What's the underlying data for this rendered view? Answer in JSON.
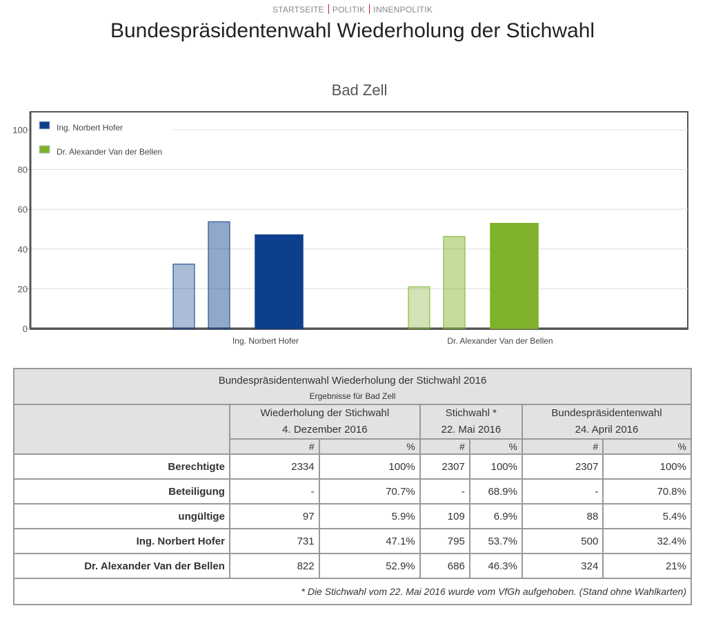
{
  "breadcrumb": [
    "STARTSEITE",
    "POLITIK",
    "INNENPOLITIK"
  ],
  "page_title": "Bundespräsidentenwahl Wiederholung der Stichwahl",
  "chart_data": {
    "type": "bar",
    "title": "Bad Zell",
    "xlabel": "",
    "ylabel": "",
    "ylim": [
      0,
      100
    ],
    "yticks": [
      0,
      20,
      40,
      60,
      80,
      100
    ],
    "grid": true,
    "legend_position": "top-left",
    "categories": [
      "Ing. Norbert Hofer",
      "Dr. Alexander Van der Bellen"
    ],
    "legend": [
      {
        "name": "Ing. Norbert Hofer",
        "color": "#0e3f8c"
      },
      {
        "name": "Dr. Alexander Van der Bellen",
        "color": "#7fb22a"
      }
    ],
    "series": [
      {
        "name": "Bundespräsidentenwahl 24. April 2016",
        "values": [
          32.4,
          21
        ],
        "opacity": 0.35
      },
      {
        "name": "Stichwahl 22. Mai 2016",
        "values": [
          53.7,
          46.3
        ],
        "opacity": 0.45
      },
      {
        "name": "Wiederholung der Stichwahl 4. Dezember 2016",
        "values": [
          47.1,
          52.9
        ],
        "opacity": 1
      }
    ],
    "colors": [
      "#0e3f8c",
      "#7fb22a"
    ]
  },
  "table": {
    "title": "Bundespräsidentenwahl Wiederholung der Stichwahl 2016",
    "subtitle": "Ergebnisse für Bad Zell",
    "groups": [
      {
        "name": "Wiederholung der Stichwahl",
        "date": "4. Dezember 2016"
      },
      {
        "name": "Stichwahl *",
        "date": "22. Mai 2016"
      },
      {
        "name": "Bundespräsidentenwahl",
        "date": "24. April 2016"
      }
    ],
    "units": [
      "#",
      "%",
      "#",
      "%",
      "#",
      "%"
    ],
    "rows": [
      {
        "label": "Berechtigte",
        "values": [
          "2334",
          "100%",
          "2307",
          "100%",
          "2307",
          "100%"
        ]
      },
      {
        "label": "Beteiligung",
        "values": [
          "-",
          "70.7%",
          "-",
          "68.9%",
          "-",
          "70.8%"
        ]
      },
      {
        "label": "ungültige",
        "values": [
          "97",
          "5.9%",
          "109",
          "6.9%",
          "88",
          "5.4%"
        ]
      },
      {
        "label": "Ing. Norbert Hofer",
        "values": [
          "731",
          "47.1%",
          "795",
          "53.7%",
          "500",
          "32.4%"
        ]
      },
      {
        "label": "Dr. Alexander Van der Bellen",
        "values": [
          "822",
          "52.9%",
          "686",
          "46.3%",
          "324",
          "21%"
        ]
      }
    ],
    "footnote": "* Die Stichwahl vom 22. Mai 2016 wurde vom VfGh aufgehoben. (Stand ohne Wahlkarten)"
  }
}
